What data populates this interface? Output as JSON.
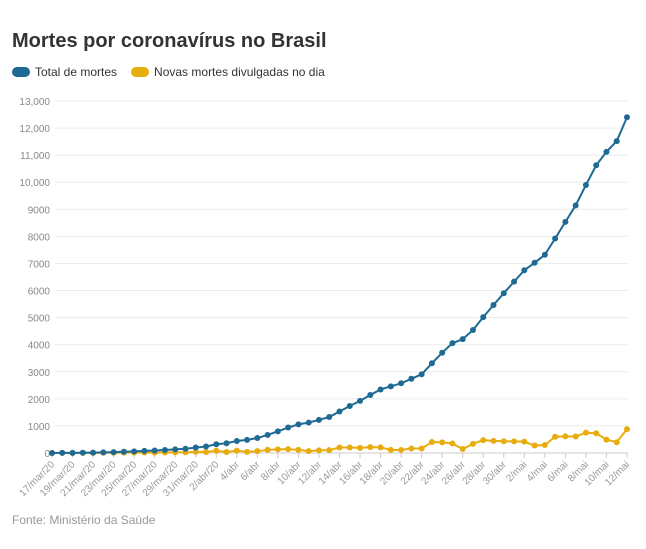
{
  "chart_data": {
    "type": "line",
    "title": "Mortes por coronavírus no Brasil",
    "source": "Fonte: Ministério da Saúde",
    "legend_position": "top-left",
    "grid": true,
    "ylim": [
      0,
      13000
    ],
    "yticks": [
      "0",
      "1000",
      "2000",
      "3000",
      "4000",
      "5000",
      "6000",
      "7000",
      "8000",
      "9000",
      "10,000",
      "11,000",
      "12,000",
      "13,000"
    ],
    "x": [
      "17/mar/20",
      "18/mar/20",
      "19/mar/20",
      "20/mar/20",
      "21/mar/20",
      "22/mar/20",
      "23/mar/20",
      "24/mar/20",
      "25/mar/20",
      "26/mar/20",
      "27/mar/20",
      "28/mar/20",
      "29/mar/20",
      "30/mar/20",
      "31/mar/20",
      "1/abr/20",
      "2/abr/20",
      "3/abr",
      "4/abr",
      "5/abr",
      "6/abr",
      "7/abr",
      "8/abr",
      "9/abr",
      "10/abr",
      "11/abr",
      "12/abr",
      "13/abr",
      "14/abr",
      "15/abr",
      "16/abr",
      "17/abr",
      "18/abr",
      "19/abr",
      "20/abr",
      "21/abr",
      "22/abr",
      "23/abr",
      "24/abr",
      "25/abr",
      "26/abr",
      "27/abr",
      "28/abr",
      "29/abr",
      "30/abr",
      "1/mai",
      "2/mai",
      "3/mai",
      "4/mai",
      "5/mai",
      "6/mai",
      "7/mai",
      "8/mai",
      "9/mai",
      "10/mai",
      "11/mai",
      "12/mai"
    ],
    "xtick_labels": [
      "17/mar/20",
      "19/mar/20",
      "21/mar/20",
      "23/mar/20",
      "25/mar/20",
      "27/mar/20",
      "29/mar/20",
      "31/mar/20",
      "2/abr/20",
      "4/abr",
      "6/abr",
      "8/abr",
      "10/abr",
      "12/abr",
      "14/abr",
      "16/abr",
      "18/abr",
      "20/abr",
      "22/abr",
      "24/abr",
      "26/abr",
      "28/abr",
      "30/abr",
      "2/mai",
      "4/mai",
      "6/mai",
      "8/mai",
      "10/mai",
      "12/mai"
    ],
    "series": [
      {
        "name": "Total de mortes",
        "color": "#1f6a93",
        "values": [
          1,
          4,
          6,
          11,
          15,
          25,
          34,
          46,
          59,
          77,
          92,
          111,
          136,
          159,
          201,
          240,
          324,
          359,
          445,
          486,
          553,
          667,
          800,
          941,
          1056,
          1124,
          1223,
          1328,
          1532,
          1736,
          1924,
          2141,
          2347,
          2462,
          2575,
          2741,
          2906,
          3313,
          3704,
          4057,
          4205,
          4543,
          5017,
          5466,
          5901,
          6329,
          6750,
          7025,
          7321,
          7921,
          8536,
          9146,
          9897,
          10627,
          11123,
          11519,
          12400
        ]
      },
      {
        "name": "Novas mortes divulgadas no dia",
        "color": "#e8ac0e",
        "values": [
          1,
          3,
          2,
          5,
          4,
          10,
          9,
          12,
          13,
          18,
          15,
          19,
          25,
          23,
          42,
          39,
          84,
          35,
          86,
          41,
          67,
          114,
          133,
          141,
          115,
          68,
          99,
          105,
          204,
          204,
          188,
          217,
          206,
          115,
          113,
          166,
          165,
          407,
          391,
          353,
          148,
          338,
          474,
          449,
          435,
          428,
          421,
          275,
          296,
          600,
          615,
          610,
          751,
          730,
          496,
          396,
          881
        ]
      }
    ]
  }
}
